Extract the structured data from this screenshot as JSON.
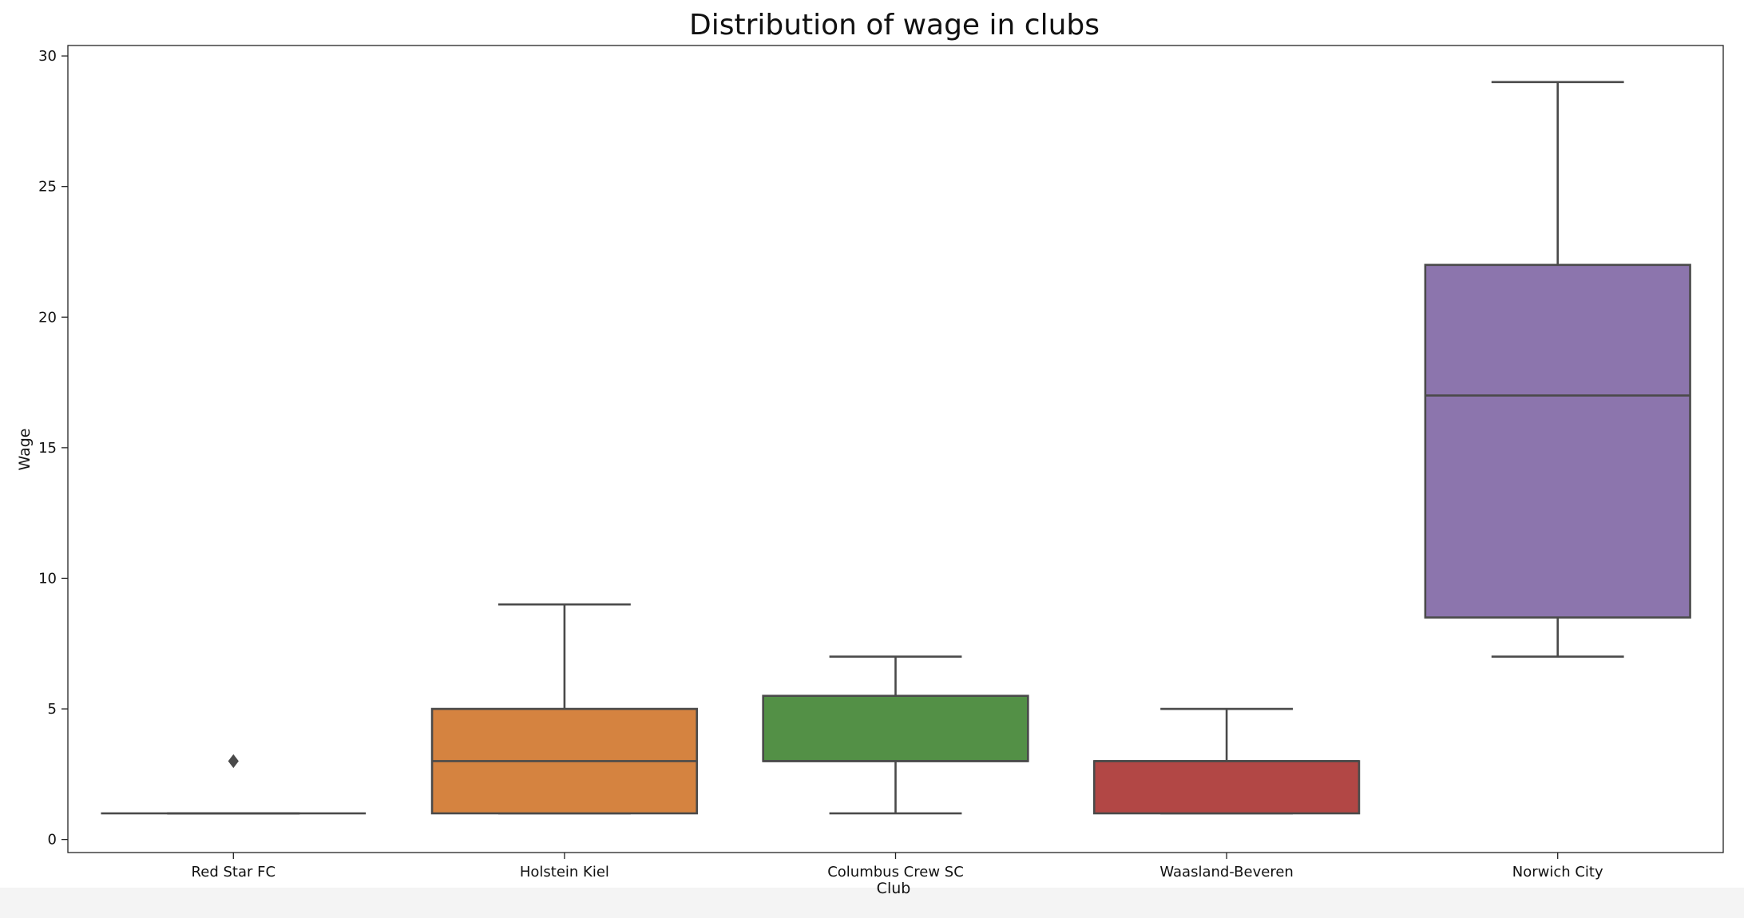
{
  "chart_data": {
    "type": "box",
    "title": "Distribution of wage in  clubs",
    "xlabel": "Club",
    "ylabel": "Wage",
    "ylim": [
      -0.5,
      30.4
    ],
    "yticks": [
      0,
      5,
      10,
      15,
      20,
      25,
      30
    ],
    "grid": false,
    "categories": [
      "Red Star FC",
      "Holstein Kiel",
      "Columbus Crew SC",
      "Waasland-Beveren",
      "Norwich City"
    ],
    "boxes": [
      {
        "whisker_low": 1,
        "q1": 1,
        "median": 1,
        "q3": 1,
        "whisker_high": 1,
        "outliers": [
          3
        ],
        "color": "#3a74a6"
      },
      {
        "whisker_low": 1,
        "q1": 1,
        "median": 3,
        "q3": 5,
        "whisker_high": 9,
        "outliers": [],
        "color": "#d58340"
      },
      {
        "whisker_low": 1,
        "q1": 3,
        "median": 3,
        "q3": 5.5,
        "whisker_high": 7,
        "outliers": [],
        "color": "#539046"
      },
      {
        "whisker_low": 1,
        "q1": 1,
        "median": 3,
        "q3": 3,
        "whisker_high": 5,
        "outliers": [],
        "color": "#b24745"
      },
      {
        "whisker_low": 7,
        "q1": 8.5,
        "median": 17,
        "q3": 22,
        "whisker_high": 29,
        "outliers": [],
        "color": "#8c75ad"
      }
    ],
    "line_color": "#4a4a4a"
  }
}
